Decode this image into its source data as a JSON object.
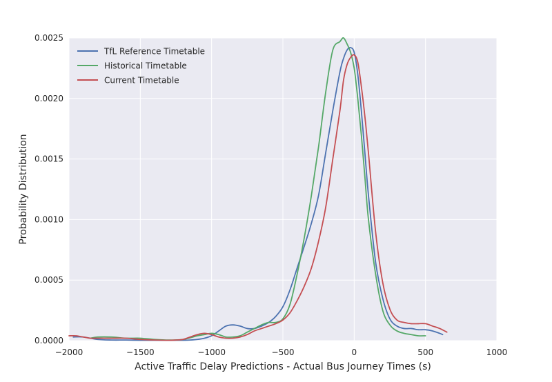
{
  "chart_data": {
    "type": "line",
    "title": "",
    "xlabel": "Active Traffic Delay Predictions - Actual Bus Journey Times (s)",
    "ylabel": "Probability Distribution",
    "xlim": [
      -2000,
      1000
    ],
    "ylim": [
      0,
      0.0025
    ],
    "xticks": [
      -2000,
      -1500,
      -1000,
      -500,
      0,
      500,
      1000
    ],
    "xtick_labels": [
      "−2000",
      "−1500",
      "−1000",
      "−500",
      "0",
      "500",
      "1000"
    ],
    "yticks": [
      0,
      0.0005,
      0.001,
      0.0015,
      0.002,
      0.0025
    ],
    "ytick_labels": [
      "0.0000",
      "0.0005",
      "0.0010",
      "0.0015",
      "0.0020",
      "0.0025"
    ],
    "grid": true,
    "legend_position": "top-left",
    "background": "#eaeaf2",
    "series": [
      {
        "name": "TfL Reference Timetable",
        "color": "#4c72b0",
        "x": [
          -1970,
          -1900,
          -1800,
          -1700,
          -1600,
          -1500,
          -1400,
          -1300,
          -1200,
          -1150,
          -1100,
          -1050,
          -1000,
          -950,
          -900,
          -850,
          -800,
          -750,
          -700,
          -650,
          -600,
          -550,
          -500,
          -450,
          -400,
          -350,
          -300,
          -250,
          -200,
          -150,
          -100,
          -75,
          -50,
          -25,
          0,
          25,
          50,
          75,
          100,
          150,
          200,
          250,
          300,
          350,
          400,
          450,
          500,
          550,
          600,
          620
        ],
        "y": [
          3e-05,
          3e-05,
          1e-05,
          5e-06,
          5e-06,
          3e-06,
          3e-06,
          3e-06,
          3e-06,
          5e-06,
          1e-05,
          2e-05,
          4e-05,
          8e-05,
          0.00012,
          0.00013,
          0.00012,
          0.0001,
          0.0001,
          0.00012,
          0.00015,
          0.0002,
          0.00028,
          0.00042,
          0.0006,
          0.00078,
          0.00097,
          0.0012,
          0.00155,
          0.0019,
          0.00222,
          0.00233,
          0.0024,
          0.00242,
          0.00238,
          0.0022,
          0.0019,
          0.00155,
          0.0012,
          0.00065,
          0.00035,
          0.00018,
          0.00012,
          0.0001,
          0.0001,
          9e-05,
          9e-05,
          8e-05,
          6e-05,
          5e-05
        ]
      },
      {
        "name": "Historical Timetable",
        "color": "#55a868",
        "x": [
          -1850,
          -1800,
          -1700,
          -1600,
          -1500,
          -1400,
          -1300,
          -1200,
          -1100,
          -1050,
          -1000,
          -950,
          -900,
          -850,
          -800,
          -750,
          -700,
          -650,
          -600,
          -550,
          -500,
          -450,
          -400,
          -350,
          -300,
          -250,
          -200,
          -150,
          -100,
          -75,
          -50,
          -25,
          0,
          25,
          50,
          75,
          100,
          150,
          200,
          250,
          300,
          350,
          400,
          450,
          500
        ],
        "y": [
          2e-05,
          3e-05,
          3e-05,
          2e-05,
          2e-05,
          1e-05,
          5e-06,
          1e-05,
          4e-05,
          5e-05,
          6e-05,
          5e-05,
          3e-05,
          3e-05,
          4e-05,
          7e-05,
          0.0001,
          0.00013,
          0.00015,
          0.00015,
          0.00018,
          0.0003,
          0.00055,
          0.00085,
          0.0012,
          0.0016,
          0.00205,
          0.0024,
          0.00247,
          0.0025,
          0.00245,
          0.00238,
          0.00225,
          0.002,
          0.0017,
          0.00135,
          0.001,
          0.00055,
          0.00025,
          0.00013,
          8e-05,
          6e-05,
          5e-05,
          4e-05,
          4e-05
        ]
      },
      {
        "name": "Current Timetable",
        "color": "#c44e52",
        "x": [
          -2000,
          -1950,
          -1900,
          -1850,
          -1800,
          -1700,
          -1600,
          -1500,
          -1400,
          -1300,
          -1250,
          -1200,
          -1150,
          -1100,
          -1050,
          -1000,
          -950,
          -900,
          -850,
          -800,
          -750,
          -700,
          -650,
          -600,
          -550,
          -500,
          -450,
          -400,
          -350,
          -300,
          -250,
          -200,
          -150,
          -100,
          -75,
          -50,
          -25,
          0,
          25,
          50,
          75,
          100,
          150,
          200,
          250,
          300,
          350,
          400,
          450,
          500,
          550,
          600,
          650
        ],
        "y": [
          4e-05,
          4e-05,
          3e-05,
          2e-05,
          2e-05,
          2e-05,
          2e-05,
          1e-05,
          5e-06,
          3e-06,
          5e-06,
          1e-05,
          3e-05,
          5e-05,
          6e-05,
          5e-05,
          3e-05,
          2e-05,
          2e-05,
          3e-05,
          5e-05,
          8e-05,
          0.0001,
          0.00012,
          0.00014,
          0.00017,
          0.00023,
          0.00033,
          0.00045,
          0.0006,
          0.00082,
          0.0011,
          0.0015,
          0.0019,
          0.00215,
          0.00228,
          0.00234,
          0.00236,
          0.0023,
          0.0021,
          0.00185,
          0.00155,
          0.0009,
          0.00048,
          0.00026,
          0.00017,
          0.00015,
          0.00014,
          0.00014,
          0.00014,
          0.00012,
          0.0001,
          7e-05
        ]
      }
    ]
  }
}
